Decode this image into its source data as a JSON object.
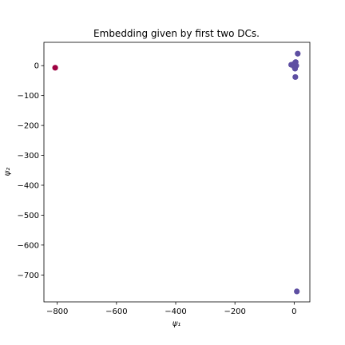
{
  "chart_data": {
    "type": "scatter",
    "title": "Embedding given by first two DCs.",
    "xlabel": "ψ₁",
    "ylabel": "ψ₂",
    "xlim": [
      -845,
      53
    ],
    "ylim": [
      -790,
      78
    ],
    "xticks": [
      -800,
      -600,
      -400,
      -200,
      0
    ],
    "xtick_labels": [
      "−800",
      "−600",
      "−400",
      "−200",
      "0"
    ],
    "yticks": [
      0,
      -100,
      -200,
      -300,
      -400,
      -500,
      -600,
      -700
    ],
    "ytick_labels": [
      "0",
      "−100",
      "−200",
      "−300",
      "−400",
      "−500",
      "−600",
      "−700"
    ],
    "grid": false,
    "points": [
      {
        "x": -807,
        "y": -7,
        "color": "#9e0142"
      },
      {
        "x": -10,
        "y": 3,
        "color": "#5e4fa2"
      },
      {
        "x": -2,
        "y": 5,
        "color": "#5e4fa2"
      },
      {
        "x": 0,
        "y": -3,
        "color": "#5e4fa2"
      },
      {
        "x": 2,
        "y": 8,
        "color": "#5e4fa2"
      },
      {
        "x": 5,
        "y": 12,
        "color": "#5e4fa2"
      },
      {
        "x": 7,
        "y": 0,
        "color": "#5e4fa2"
      },
      {
        "x": 3,
        "y": -10,
        "color": "#5e4fa2"
      },
      {
        "x": 12,
        "y": 40,
        "color": "#5e4fa2"
      },
      {
        "x": 4,
        "y": -38,
        "color": "#5e4fa2"
      },
      {
        "x": 9,
        "y": -755,
        "color": "#5e4fa2"
      }
    ]
  }
}
